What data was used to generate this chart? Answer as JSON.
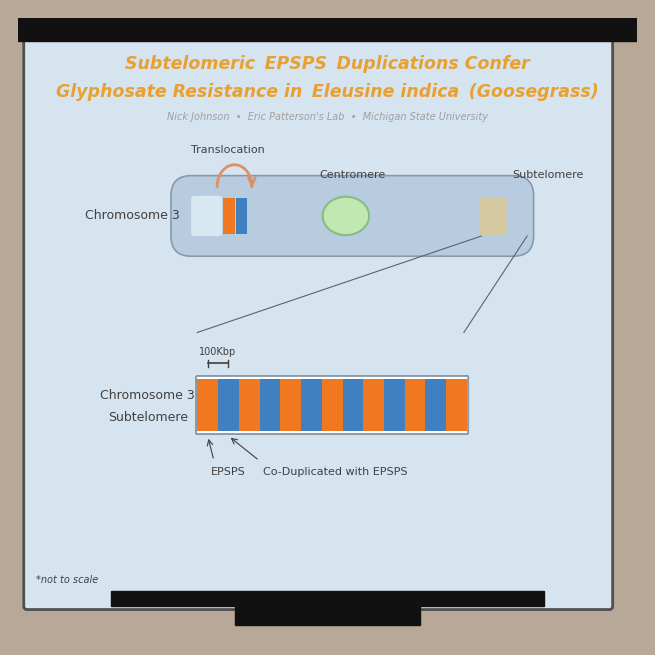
{
  "title_line1": "Subtelomeric ",
  "title_epsps": "EPSPS",
  "title_line1_rest": " Duplications Confer",
  "title_line2_start": "Glyphosate Resistance in ",
  "title_line2_italic": "Eleusine indica",
  "title_line2_end": " (Goosegrass)",
  "subtitle": "Nick Johnson  •  Eric Patterson's Lab  •  Michigan State University",
  "chrom3_label": "Chromosome 3",
  "chrom3_sub_label1": "Chromosome 3",
  "chrom3_sub_label2": "Subtelomere",
  "translocation_label": "Translocation",
  "centromere_label": "Centromere",
  "subtelomere_label": "Subtelomere",
  "epsps_label": "EPSPS",
  "co_dup_label": "Co-Duplicated with EPSPS",
  "scale_label": "100Kbp",
  "not_to_scale": "*not to scale",
  "bg_color": "#d6e4f0",
  "slide_bg": "#c8d8e8",
  "title_color": "#e8a030",
  "subtitle_color": "#a0a0a0",
  "orange_color": "#f07820",
  "blue_color": "#4080c0",
  "chrom_body_color": "#b8cce0",
  "chrom_border_color": "#8899aa",
  "centromere_color": "#c0e8b0",
  "centromere_border": "#88bb88",
  "label_color": "#404040",
  "arrow_color": "#e09060"
}
